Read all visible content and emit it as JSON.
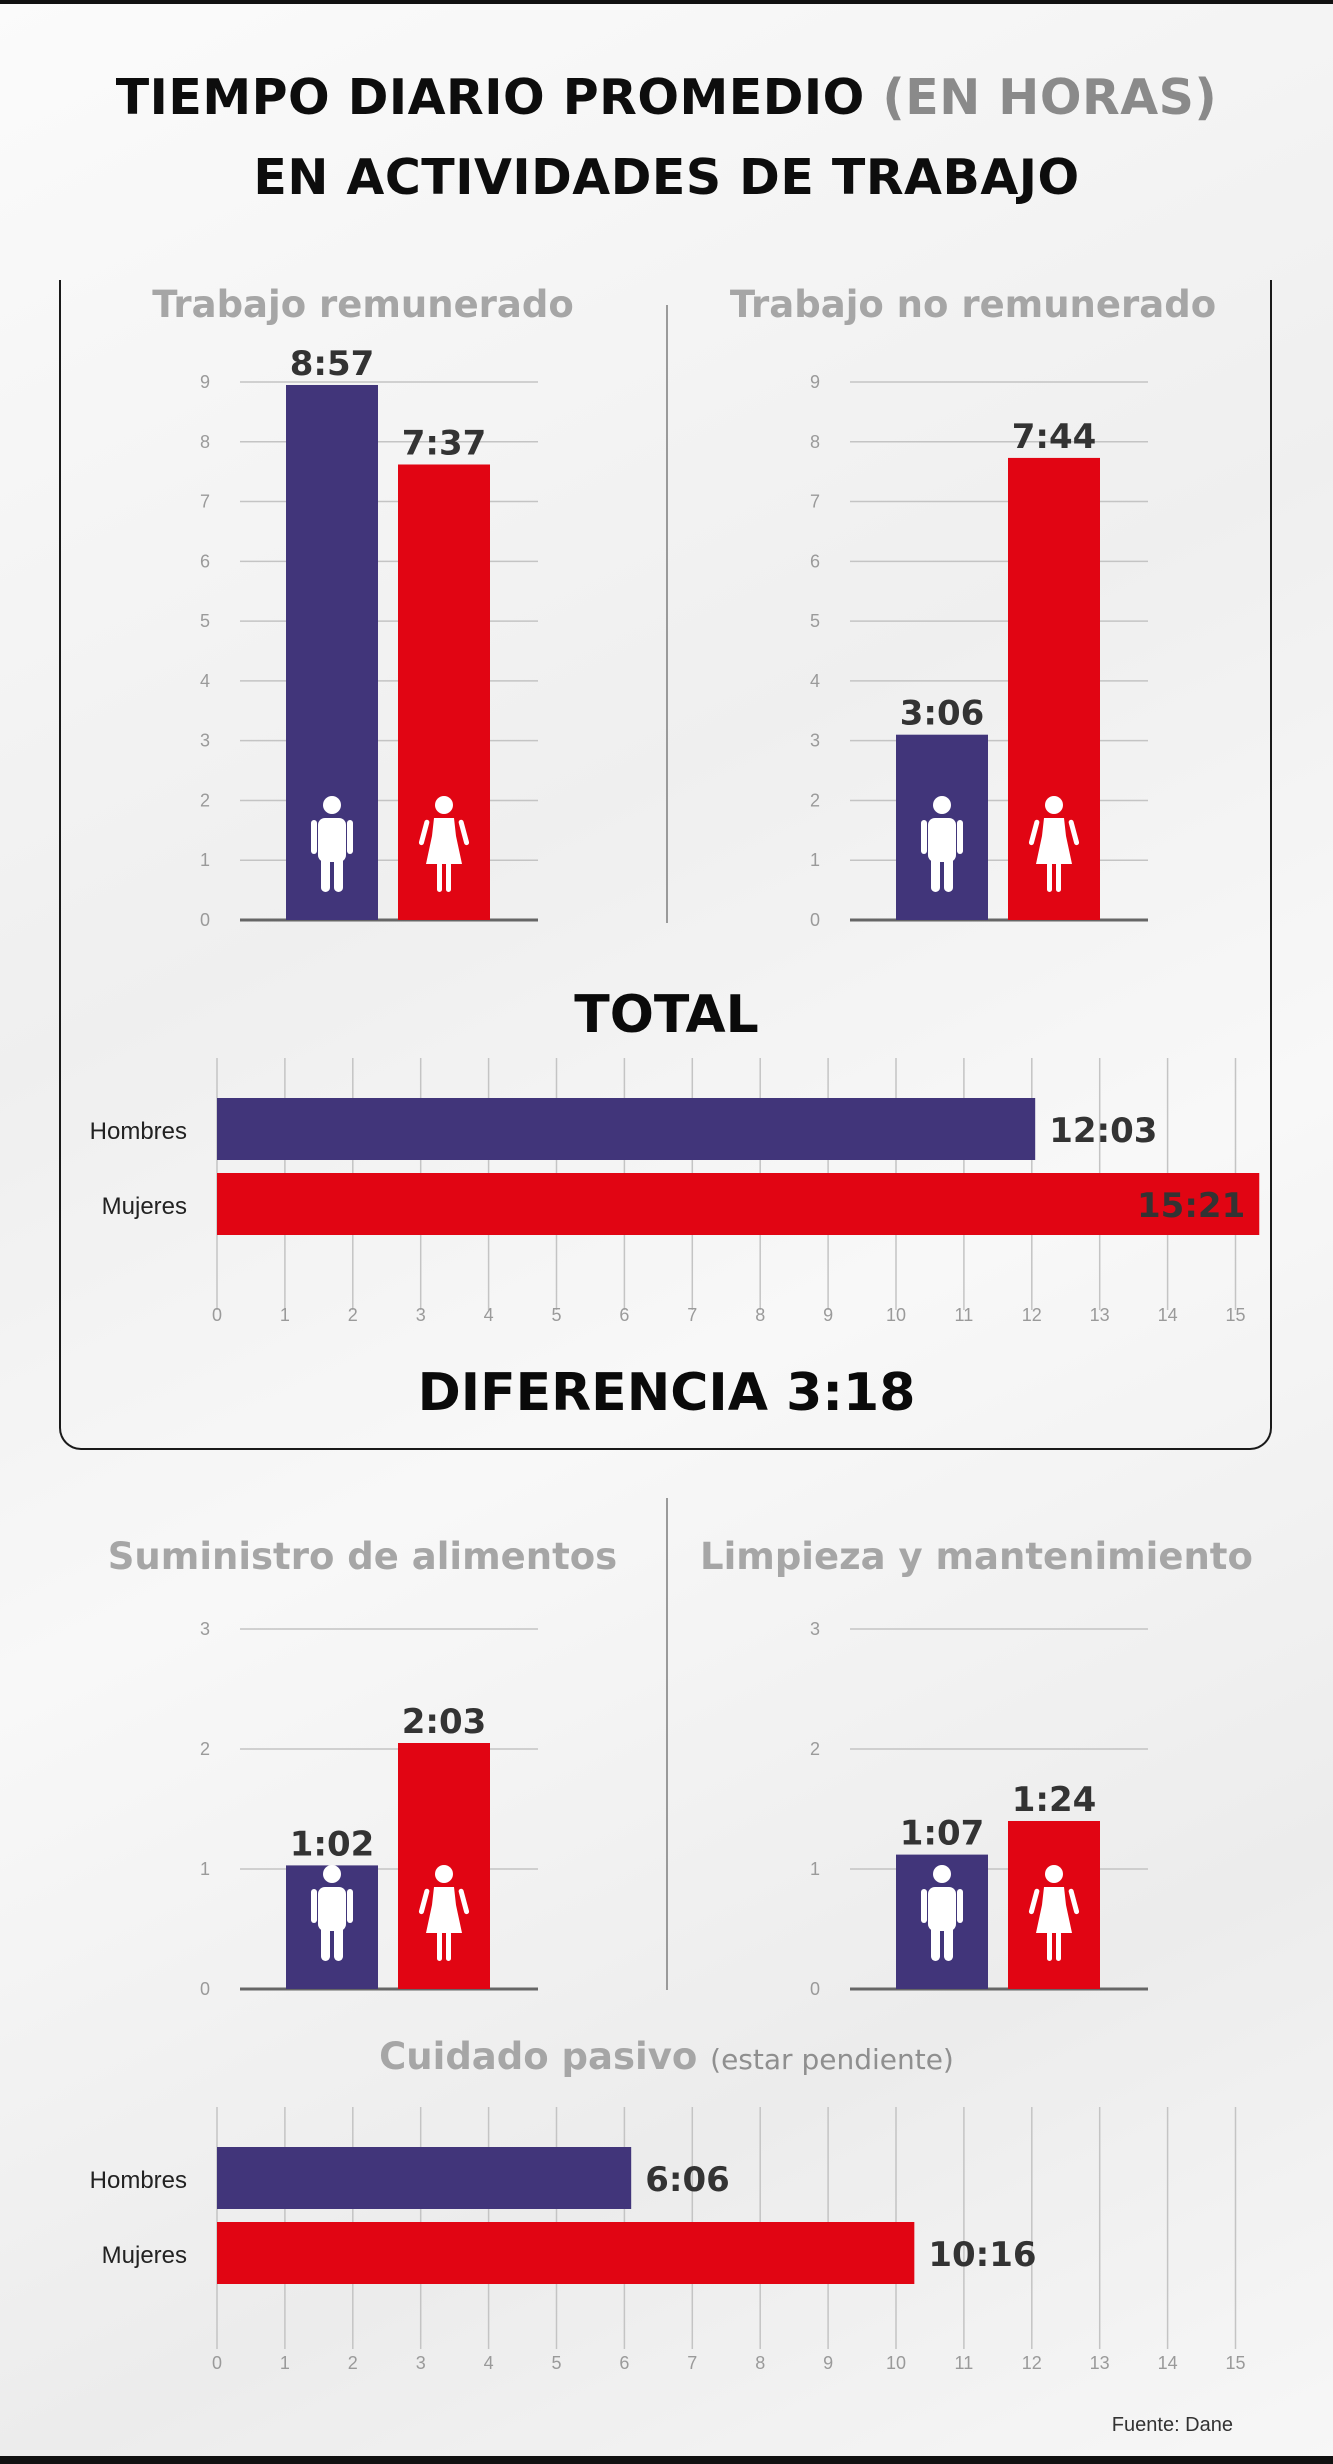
{
  "header": {
    "title_part1": "TIEMPO DIARIO PROMEDIO",
    "title_accent": "(EN HORAS)",
    "title_line2": "EN ACTIVIDADES DE TRABAJO"
  },
  "labels": {
    "total": "TOTAL",
    "difference": "DIFERENCIA 3:18",
    "source": "Fuente: Dane"
  },
  "colors": {
    "men": "#41357a",
    "women": "#e10513",
    "grid": "#c4c4c4",
    "axis": "#666666"
  },
  "icons": {
    "men": "man-icon",
    "women": "woman-icon"
  },
  "chart_data": [
    {
      "type": "bar",
      "title": "Trabajo remunerado",
      "categories": [
        "Hombres",
        "Mujeres"
      ],
      "values": [
        8.95,
        7.62
      ],
      "value_labels": [
        "8:57",
        "7:37"
      ],
      "ylim": [
        0,
        9
      ],
      "yticks": [
        "0",
        "1",
        "2",
        "3",
        "4",
        "5",
        "6",
        "7",
        "8",
        "9"
      ],
      "grid": true
    },
    {
      "type": "bar",
      "title": "Trabajo no remunerado",
      "categories": [
        "Hombres",
        "Mujeres"
      ],
      "values": [
        3.1,
        7.73
      ],
      "value_labels": [
        "3:06",
        "7:44"
      ],
      "ylim": [
        0,
        9
      ],
      "yticks": [
        "0",
        "1",
        "2",
        "3",
        "4",
        "5",
        "6",
        "7",
        "8",
        "9"
      ],
      "grid": true
    },
    {
      "type": "bar",
      "orientation": "horizontal",
      "title": "TOTAL",
      "categories": [
        "Hombres",
        "Mujeres"
      ],
      "values": [
        12.05,
        15.35
      ],
      "value_labels": [
        "12:03",
        "15:21"
      ],
      "xlim": [
        0,
        15
      ],
      "xticks": [
        "0",
        "1",
        "2",
        "3",
        "4",
        "5",
        "6",
        "7",
        "8",
        "9",
        "10",
        "11",
        "12",
        "13",
        "14",
        "15"
      ],
      "grid": true
    },
    {
      "type": "bar",
      "title": "Suministro de alimentos",
      "categories": [
        "Hombres",
        "Mujeres"
      ],
      "values": [
        1.03,
        2.05
      ],
      "value_labels": [
        "1:02",
        "2:03"
      ],
      "ylim": [
        0,
        3
      ],
      "yticks": [
        "0",
        "1",
        "2",
        "3"
      ],
      "grid": true
    },
    {
      "type": "bar",
      "title": "Limpieza y mantenimiento",
      "categories": [
        "Hombres",
        "Mujeres"
      ],
      "values": [
        1.12,
        1.4
      ],
      "value_labels": [
        "1:07",
        "1:24"
      ],
      "ylim": [
        0,
        3
      ],
      "yticks": [
        "0",
        "1",
        "2",
        "3"
      ],
      "grid": true
    },
    {
      "type": "bar",
      "orientation": "horizontal",
      "title": "Cuidado pasivo",
      "subtitle": "(estar pendiente)",
      "categories": [
        "Hombres",
        "Mujeres"
      ],
      "values": [
        6.1,
        10.27
      ],
      "value_labels": [
        "6:06",
        "10:16"
      ],
      "xlim": [
        0,
        15
      ],
      "xticks": [
        "0",
        "1",
        "2",
        "3",
        "4",
        "5",
        "6",
        "7",
        "8",
        "9",
        "10",
        "11",
        "12",
        "13",
        "14",
        "15"
      ],
      "grid": true
    }
  ]
}
